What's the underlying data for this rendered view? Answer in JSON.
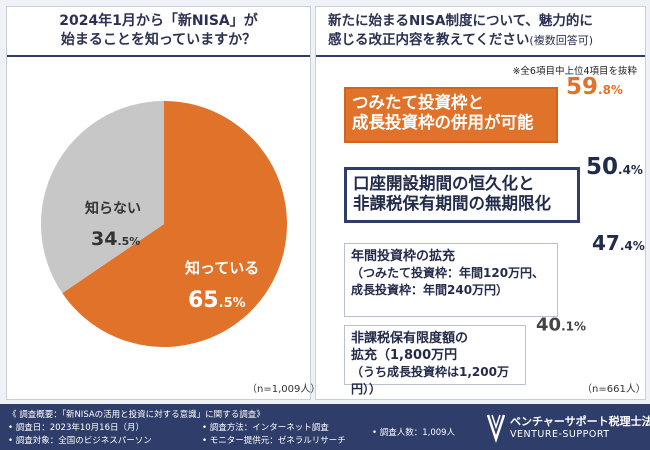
{
  "chart_data": [
    {
      "type": "pie",
      "title": "2024年1月から「新NISA」が始まることを知っていますか？",
      "title_lines": [
        "2024年1月から「新NISA」が",
        "始まることを知っていますか？"
      ],
      "slices": [
        {
          "label": "知っている",
          "value": 65.5,
          "int_text": "65",
          "dec_text": ".5%",
          "color": "#e0722a",
          "text_color": "#ffffff"
        },
        {
          "label": "知らない",
          "value": 34.5,
          "int_text": "34",
          "dec_text": ".5%",
          "color": "#c7c7c7",
          "text_color": "#333333"
        }
      ],
      "sample": "（n=1,009人）"
    },
    {
      "type": "bar",
      "title": "新たに始まるNISA制度について、魅力的に感じる改正内容を教えてください",
      "title_line1": "新たに始まるNISA制度について、魅力的に",
      "title_line2": "感じる改正内容を教えてください",
      "title_note": "(複数回答可)",
      "note": "※全6項目中上位4項目を抜粋",
      "categories": [
        "つみたて投資枠と成長投資枠の併用が可能",
        "口座開設期間の恒久化と非課税保有期間の無期限化",
        "年間投資枠の拡充",
        "非課税保有限度額の拡充"
      ],
      "values": [
        59.8,
        50.4,
        47.4,
        40.1
      ],
      "items": [
        {
          "line1": "つみたて投資枠と",
          "line2": "成長投資枠の併用が可能",
          "sub1": "",
          "sub2": "",
          "int_text": "59",
          "dec_text": ".8%"
        },
        {
          "line1": "口座開設期間の恒久化と",
          "line2": "非課税保有期間の無期限化",
          "sub1": "",
          "sub2": "",
          "int_text": "50",
          "dec_text": ".4%"
        },
        {
          "line1": "年間投資枠の拡充",
          "line2": "",
          "sub1": "（つみたて投資枠：年間120万円、",
          "sub2": "成長投資枠：年間240万円）",
          "int_text": "47",
          "dec_text": ".4%"
        },
        {
          "line1": "非課税保有限度額の",
          "line2": "拡充（1,800万円",
          "sub1": "（うち成長投資枠は1,200万円））",
          "sub2": "",
          "int_text": "40",
          "dec_text": ".1%"
        }
      ],
      "sample": "（n=661人）"
    }
  ],
  "footer": {
    "overview": "《 調査概要：「新NISAの活用と投資に対する意識」に関する調査》",
    "period": "• 調査日：2023年10月16日（月）",
    "target": "• 調査対象：全国のビジネスパーソン",
    "method": "• 調査方法：インターネット調査",
    "provider": "• モニター提供元：ゼネラルリサーチ",
    "count": "• 調査人数：1,009人",
    "logo_name": "ベンチャーサポート税理士法人",
    "logo_en": "VENTURE-SUPPORT"
  },
  "colors": {
    "navy": "#2f3d6a",
    "orange": "#e0722a",
    "gray": "#c7c7c7"
  }
}
